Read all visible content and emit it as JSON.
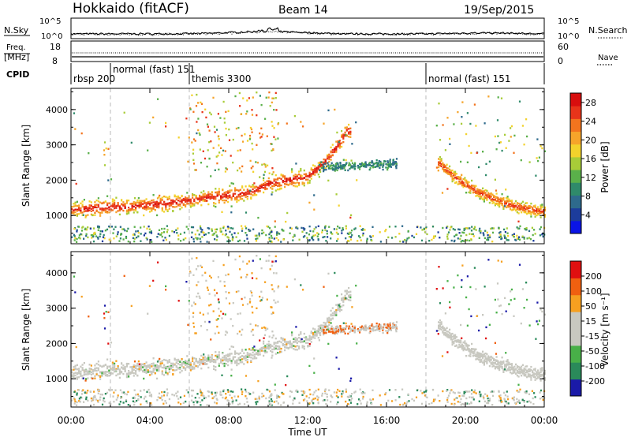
{
  "header": {
    "station": "Hokkaido (fitACF)",
    "beam": "Beam 14",
    "date": "19/Sep/2015"
  },
  "noise_panel": {
    "left_label": "N.Sky",
    "right_label": "N.Search",
    "ticks_left": [
      "10^5",
      "10^0"
    ],
    "ticks_right": [
      "10^5",
      "10^0"
    ]
  },
  "freq_panel": {
    "left_label_1": "Freq.",
    "left_label_2": "[MHz]",
    "right_label": "Nave",
    "ticks_left": [
      "18",
      "8"
    ],
    "ticks_right": [
      "60",
      "0"
    ]
  },
  "cpid_panel": {
    "label": "CPID",
    "segments": [
      {
        "name": "rbsp 200",
        "start_hour": 0.0
      },
      {
        "name": "normal (fast) 151",
        "start_hour": 2.0
      },
      {
        "name": "themis 3300",
        "start_hour": 6.0
      },
      {
        "name": "normal (fast) 151",
        "start_hour": 18.0
      }
    ]
  },
  "power_panel": {
    "ylabel": "Slant Range [km]",
    "yticks": [
      "4000",
      "3000",
      "2000",
      "1000"
    ],
    "colorbar_label": "Power [dB]",
    "colorbar_ticks": [
      "28",
      "24",
      "20",
      "16",
      "12",
      "8",
      "4"
    ]
  },
  "velocity_panel": {
    "ylabel": "Slant Range [km]",
    "yticks": [
      "4000",
      "3000",
      "2000",
      "1000"
    ],
    "colorbar_label": "Velocity [m s⁻¹]",
    "colorbar_ticks": [
      "200",
      "100",
      "50",
      "15",
      "-15",
      "-50",
      "-100",
      "-200"
    ]
  },
  "xaxis": {
    "label": "Time UT",
    "ticks": [
      "00:00",
      "04:00",
      "08:00",
      "12:00",
      "16:00",
      "20:00",
      "00:00"
    ]
  },
  "chart_data": {
    "type": "heatmap",
    "title": "Hokkaido (fitACF)",
    "subtitle": "Beam 14 — 19/Sep/2015",
    "xlabel": "Time UT",
    "ylabel": "Slant Range [km]",
    "xlim_hours": [
      0,
      24
    ],
    "ylim_km": [
      200,
      4600
    ],
    "series": [
      {
        "name": "Power [dB]",
        "colorscale": [
          "#0a14e6",
          "#1c3c9c",
          "#2e6a8c",
          "#2f8a6a",
          "#5ab04a",
          "#a8cc38",
          "#f3d22c",
          "#f6a42a",
          "#f3741e",
          "#e8341a",
          "#d80e0e"
        ],
        "range": [
          0,
          30
        ],
        "features": [
          {
            "desc": "main echo band",
            "x_hours": [
              0,
              1,
              3,
              5,
              7,
              9,
              10,
              11,
              12,
              13,
              14
            ],
            "y_km": [
              1150,
              1200,
              1250,
              1350,
              1500,
              1650,
              1900,
              2000,
              2100,
              2600,
              3400
            ]
          },
          {
            "desc": "evening band",
            "x_hours": [
              18.6,
              19.5,
              20.5,
              21.5,
              22.5,
              24
            ],
            "y_km": [
              2500,
              2050,
              1700,
              1450,
              1250,
              1100
            ]
          }
        ]
      },
      {
        "name": "Velocity [m s⁻¹]",
        "colorscale": [
          "#e01010",
          "#f06010",
          "#f6a020",
          "#c8c8c0",
          "#c8c8c0",
          "#48b048",
          "#2a8a5a",
          "#1a1aa8"
        ],
        "range": [
          -200,
          200
        ],
        "features": [
          {
            "desc": "low-velocity (ground) echo band",
            "x_hours": [
              0,
              1,
              3,
              5,
              7,
              9,
              10,
              11,
              12,
              13,
              14
            ],
            "y_km": [
              1150,
              1200,
              1250,
              1350,
              1500,
              1650,
              1900,
              2000,
              2100,
              2600,
              3400
            ]
          }
        ]
      }
    ]
  }
}
